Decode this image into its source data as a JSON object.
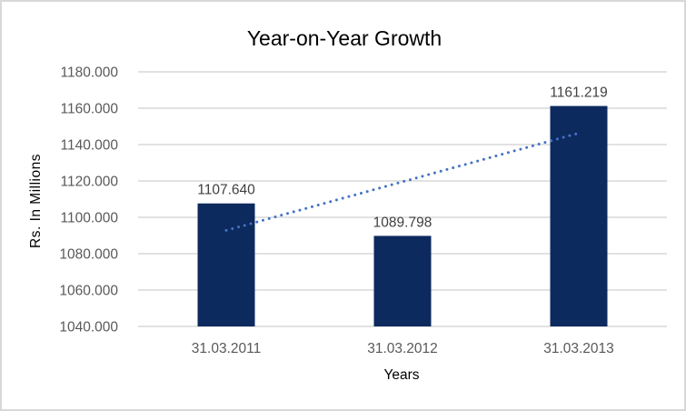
{
  "chart_data": {
    "type": "bar",
    "title": "Year-on-Year Growth",
    "xlabel": "Years",
    "ylabel": "Rs. In Millions",
    "categories": [
      "31.03.2011",
      "31.03.2012",
      "31.03.2013"
    ],
    "values": [
      1107.64,
      1089.798,
      1161.219
    ],
    "data_labels": [
      "1107.640",
      "1089.798",
      "1161.219"
    ],
    "y_ticks": [
      1040,
      1060,
      1080,
      1100,
      1120,
      1140,
      1160,
      1180
    ],
    "y_tick_labels": [
      "1040.000",
      "1060.000",
      "1080.000",
      "1100.000",
      "1120.000",
      "1140.000",
      "1160.000",
      "1180.000"
    ],
    "ylim": [
      1040,
      1180
    ],
    "grid": "horizontal",
    "legend": "none",
    "trendline": {
      "type": "linear",
      "style": "dotted",
      "start_value": 1092.8,
      "end_value": 1146.3
    },
    "colors": {
      "bar": "#0d2a5e",
      "trendline": "#4472C4",
      "gridline": "#d9d9d9",
      "title_text": "#595959",
      "axis_text": "#595959",
      "data_label_text": "#404040",
      "background": "#ffffff",
      "frame_border": "#d8d8d8"
    }
  }
}
